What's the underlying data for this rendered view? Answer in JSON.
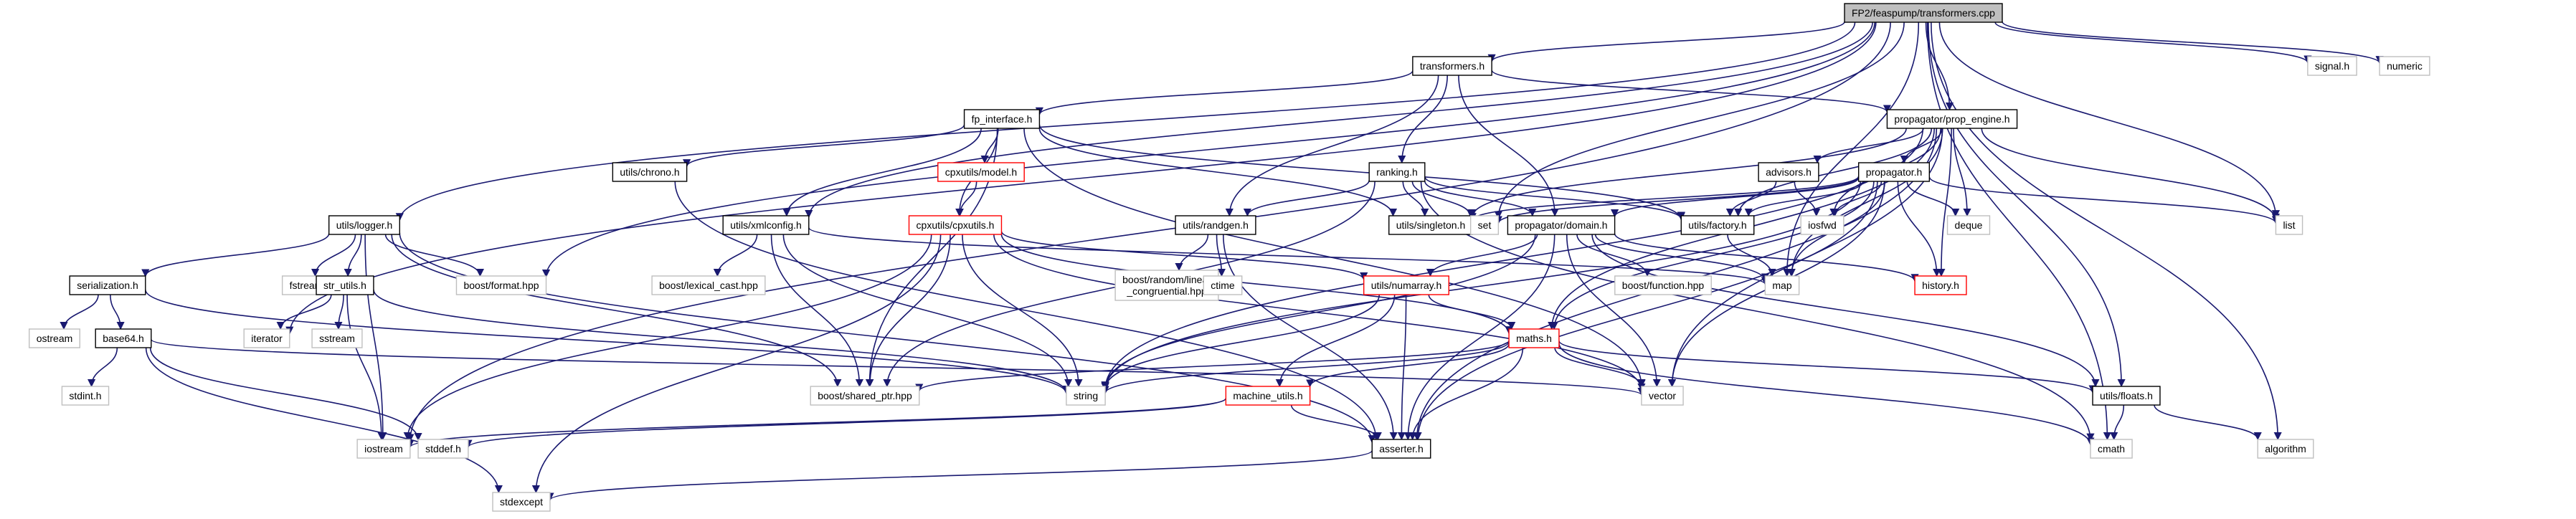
{
  "title": "FP2/feaspump/transformers.cpp",
  "colors": {
    "edge": "#191970",
    "root_fill": "#bfbfbf",
    "boxed_border": "#000000",
    "red_border": "#ff0000",
    "plain_border": "#bfbfbf"
  },
  "nodes": [
    {
      "id": "root",
      "label": "FP2/feaspump/transformers.cpp",
      "style": "root"
    },
    {
      "id": "transformers",
      "label": "transformers.h",
      "style": "boxed"
    },
    {
      "id": "signal",
      "label": "signal.h",
      "style": "plain"
    },
    {
      "id": "numeric",
      "label": "numeric",
      "style": "plain"
    },
    {
      "id": "fp_interface",
      "label": "fp_interface.h",
      "style": "boxed"
    },
    {
      "id": "prop_engine",
      "label": "propagator/prop_engine.h",
      "style": "boxed"
    },
    {
      "id": "chrono",
      "label": "utils/chrono.h",
      "style": "boxed"
    },
    {
      "id": "model",
      "label": "cpxutils/model.h",
      "style": "red"
    },
    {
      "id": "ranking",
      "label": "ranking.h",
      "style": "boxed"
    },
    {
      "id": "advisors",
      "label": "advisors.h",
      "style": "boxed"
    },
    {
      "id": "propagator",
      "label": "propagator.h",
      "style": "boxed"
    },
    {
      "id": "logger",
      "label": "utils/logger.h",
      "style": "boxed"
    },
    {
      "id": "xmlconfig",
      "label": "utils/xmlconfig.h",
      "style": "boxed"
    },
    {
      "id": "cpxutils",
      "label": "cpxutils/cpxutils.h",
      "style": "red"
    },
    {
      "id": "randgen",
      "label": "utils/randgen.h",
      "style": "boxed"
    },
    {
      "id": "singleton",
      "label": "utils/singleton.h",
      "style": "boxed"
    },
    {
      "id": "set",
      "label": "set",
      "style": "plain"
    },
    {
      "id": "domain",
      "label": "propagator/domain.h",
      "style": "boxed"
    },
    {
      "id": "factory",
      "label": "utils/factory.h",
      "style": "boxed"
    },
    {
      "id": "iosfwd",
      "label": "iosfwd",
      "style": "plain"
    },
    {
      "id": "deque",
      "label": "deque",
      "style": "plain"
    },
    {
      "id": "list",
      "label": "list",
      "style": "plain"
    },
    {
      "id": "serialization",
      "label": "serialization.h",
      "style": "boxed"
    },
    {
      "id": "fstream",
      "label": "fstream",
      "style": "plain"
    },
    {
      "id": "str_utils",
      "label": "str_utils.h",
      "style": "boxed"
    },
    {
      "id": "boost_format",
      "label": "boost/format.hpp",
      "style": "plain"
    },
    {
      "id": "boost_lexical",
      "label": "boost/lexical_cast.hpp",
      "style": "plain"
    },
    {
      "id": "boost_random",
      "label": "boost/random/linear\n_congruential.hpp",
      "style": "plain"
    },
    {
      "id": "ctime",
      "label": "ctime",
      "style": "plain"
    },
    {
      "id": "numarray",
      "label": "utils/numarray.h",
      "style": "red"
    },
    {
      "id": "boost_function",
      "label": "boost/function.hpp",
      "style": "plain"
    },
    {
      "id": "map",
      "label": "map",
      "style": "plain"
    },
    {
      "id": "history",
      "label": "history.h",
      "style": "red"
    },
    {
      "id": "ostream",
      "label": "ostream",
      "style": "plain"
    },
    {
      "id": "base64",
      "label": "base64.h",
      "style": "boxed"
    },
    {
      "id": "iterator",
      "label": "iterator",
      "style": "plain"
    },
    {
      "id": "sstream",
      "label": "sstream",
      "style": "plain"
    },
    {
      "id": "maths",
      "label": "maths.h",
      "style": "red"
    },
    {
      "id": "stdint",
      "label": "stdint.h",
      "style": "plain"
    },
    {
      "id": "boost_shared",
      "label": "boost/shared_ptr.hpp",
      "style": "plain"
    },
    {
      "id": "string",
      "label": "string",
      "style": "plain"
    },
    {
      "id": "vector",
      "label": "vector",
      "style": "plain"
    },
    {
      "id": "floats",
      "label": "utils/floats.h",
      "style": "boxed"
    },
    {
      "id": "machine_utils",
      "label": "machine_utils.h",
      "style": "red"
    },
    {
      "id": "iostream",
      "label": "iostream",
      "style": "plain"
    },
    {
      "id": "stddef",
      "label": "stddef.h",
      "style": "plain"
    },
    {
      "id": "asserter",
      "label": "asserter.h",
      "style": "boxed"
    },
    {
      "id": "cmath",
      "label": "cmath",
      "style": "plain"
    },
    {
      "id": "algorithm",
      "label": "algorithm",
      "style": "plain"
    },
    {
      "id": "stdexcept",
      "label": "stdexcept",
      "style": "plain"
    }
  ],
  "edges": [
    [
      "root",
      "transformers"
    ],
    [
      "root",
      "signal"
    ],
    [
      "root",
      "numeric"
    ],
    [
      "root",
      "prop_engine"
    ],
    [
      "root",
      "xmlconfig"
    ],
    [
      "root",
      "logger"
    ],
    [
      "root",
      "boost_format"
    ],
    [
      "root",
      "iterator"
    ],
    [
      "root",
      "iostream"
    ],
    [
      "root",
      "set"
    ],
    [
      "root",
      "list"
    ],
    [
      "root",
      "map"
    ],
    [
      "root",
      "floats"
    ],
    [
      "root",
      "cmath"
    ],
    [
      "root",
      "algorithm"
    ],
    [
      "transformers",
      "fp_interface"
    ],
    [
      "transformers",
      "prop_engine"
    ],
    [
      "transformers",
      "ranking"
    ],
    [
      "transformers",
      "domain"
    ],
    [
      "transformers",
      "randgen"
    ],
    [
      "fp_interface",
      "chrono"
    ],
    [
      "fp_interface",
      "model"
    ],
    [
      "fp_interface",
      "cpxutils"
    ],
    [
      "fp_interface",
      "xmlconfig"
    ],
    [
      "fp_interface",
      "singleton"
    ],
    [
      "fp_interface",
      "factory"
    ],
    [
      "fp_interface",
      "boost_shared"
    ],
    [
      "fp_interface",
      "vector"
    ],
    [
      "model",
      "cpxutils"
    ],
    [
      "prop_engine",
      "advisors"
    ],
    [
      "prop_engine",
      "propagator"
    ],
    [
      "prop_engine",
      "singleton"
    ],
    [
      "prop_engine",
      "factory"
    ],
    [
      "prop_engine",
      "iosfwd"
    ],
    [
      "prop_engine",
      "deque"
    ],
    [
      "prop_engine",
      "list"
    ],
    [
      "prop_engine",
      "map"
    ],
    [
      "prop_engine",
      "history"
    ],
    [
      "prop_engine",
      "maths"
    ],
    [
      "prop_engine",
      "vector"
    ],
    [
      "prop_engine",
      "asserter"
    ],
    [
      "prop_engine",
      "string"
    ],
    [
      "advisors",
      "iosfwd"
    ],
    [
      "advisors",
      "factory"
    ],
    [
      "propagator",
      "domain"
    ],
    [
      "propagator",
      "set"
    ],
    [
      "propagator",
      "singleton"
    ],
    [
      "propagator",
      "factory"
    ],
    [
      "propagator",
      "iosfwd"
    ],
    [
      "propagator",
      "deque"
    ],
    [
      "propagator",
      "list"
    ],
    [
      "propagator",
      "map"
    ],
    [
      "propagator",
      "history"
    ],
    [
      "propagator",
      "maths"
    ],
    [
      "propagator",
      "vector"
    ],
    [
      "propagator",
      "asserter"
    ],
    [
      "propagator",
      "string"
    ],
    [
      "ranking",
      "randgen"
    ],
    [
      "ranking",
      "singleton"
    ],
    [
      "ranking",
      "set"
    ],
    [
      "ranking",
      "domain"
    ],
    [
      "ranking",
      "factory"
    ],
    [
      "ranking",
      "boost_shared"
    ],
    [
      "ranking",
      "cmath"
    ],
    [
      "chrono",
      "asserter"
    ],
    [
      "logger",
      "serialization"
    ],
    [
      "logger",
      "fstream"
    ],
    [
      "logger",
      "str_utils"
    ],
    [
      "logger",
      "boost_format"
    ],
    [
      "logger",
      "boost_shared"
    ],
    [
      "logger",
      "iostream"
    ],
    [
      "logger",
      "asserter"
    ],
    [
      "xmlconfig",
      "boost_lexical"
    ],
    [
      "xmlconfig",
      "boost_shared"
    ],
    [
      "xmlconfig",
      "string"
    ],
    [
      "xmlconfig",
      "map"
    ],
    [
      "cpxutils",
      "numarray"
    ],
    [
      "cpxutils",
      "maths"
    ],
    [
      "cpxutils",
      "boost_shared"
    ],
    [
      "cpxutils",
      "string"
    ],
    [
      "cpxutils",
      "vector"
    ],
    [
      "cpxutils",
      "iostream"
    ],
    [
      "cpxutils",
      "stdexcept"
    ],
    [
      "randgen",
      "boost_random"
    ],
    [
      "randgen",
      "ctime"
    ],
    [
      "randgen",
      "asserter"
    ],
    [
      "domain",
      "numarray"
    ],
    [
      "domain",
      "boost_function"
    ],
    [
      "domain",
      "map"
    ],
    [
      "domain",
      "history"
    ],
    [
      "domain",
      "floats"
    ],
    [
      "domain",
      "vector"
    ],
    [
      "domain",
      "string"
    ],
    [
      "domain",
      "asserter"
    ],
    [
      "factory",
      "map"
    ],
    [
      "numarray",
      "maths"
    ],
    [
      "numarray",
      "machine_utils"
    ],
    [
      "numarray",
      "asserter"
    ],
    [
      "numarray",
      "string"
    ],
    [
      "serialization",
      "ostream"
    ],
    [
      "serialization",
      "base64"
    ],
    [
      "serialization",
      "string"
    ],
    [
      "base64",
      "stdint"
    ],
    [
      "base64",
      "vector"
    ],
    [
      "base64",
      "stddef"
    ],
    [
      "base64",
      "stdexcept"
    ],
    [
      "str_utils",
      "iterator"
    ],
    [
      "str_utils",
      "sstream"
    ],
    [
      "str_utils",
      "iostream"
    ],
    [
      "str_utils",
      "string"
    ],
    [
      "maths",
      "machine_utils"
    ],
    [
      "maths",
      "floats"
    ],
    [
      "maths",
      "vector"
    ],
    [
      "maths",
      "string"
    ],
    [
      "maths",
      "asserter"
    ],
    [
      "maths",
      "cmath"
    ],
    [
      "maths",
      "boost_shared"
    ],
    [
      "floats",
      "cmath"
    ],
    [
      "floats",
      "algorithm"
    ],
    [
      "machine_utils",
      "iostream"
    ],
    [
      "machine_utils",
      "stddef"
    ],
    [
      "machine_utils",
      "asserter"
    ],
    [
      "asserter",
      "stdexcept"
    ]
  ]
}
